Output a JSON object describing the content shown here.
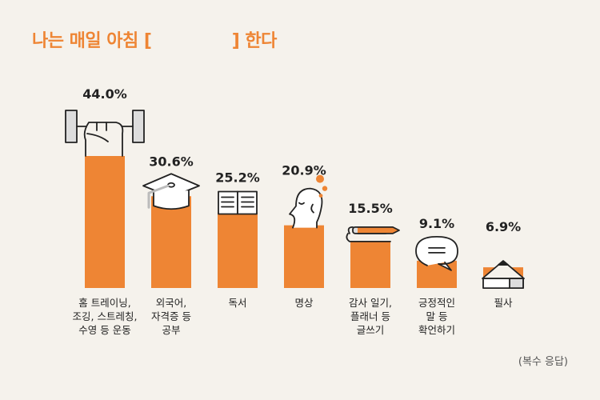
{
  "title": "나는 매일 아침 [              ] 한다",
  "note": "(복수 응답)",
  "colors": {
    "bar": "#ee8534",
    "ink": "#222222",
    "background": "#f5f2ec",
    "accent": "#ee8534"
  },
  "chart_data": {
    "type": "bar",
    "title": "나는 매일 아침 [              ] 한다",
    "xlabel": "",
    "ylabel": "",
    "ylim": [
      0,
      50
    ],
    "grid": false,
    "categories": [
      [
        "홈 트레이닝,",
        "조깅, 스트레칭,",
        "수영 등 운동"
      ],
      [
        "외국어,",
        "자격증 등",
        "공부"
      ],
      [
        "독서"
      ],
      [
        "명상"
      ],
      [
        "감사 일기,",
        "플래너 등",
        "글쓰기"
      ],
      [
        "긍정적인",
        "말 등",
        "확언하기"
      ],
      [
        "필사"
      ]
    ],
    "values": [
      44.0,
      30.6,
      25.2,
      20.9,
      15.5,
      9.1,
      6.9
    ],
    "value_labels": [
      "44.0%",
      "30.6%",
      "25.2%",
      "20.9%",
      "15.5%",
      "9.1%",
      "6.9%"
    ],
    "icons": [
      "dumbbell-icon",
      "graduation-cap-icon",
      "open-book-icon",
      "meditating-head-icon",
      "notebook-pencil-icon",
      "speech-bubble-icon",
      "pencil-tip-icon"
    ]
  }
}
